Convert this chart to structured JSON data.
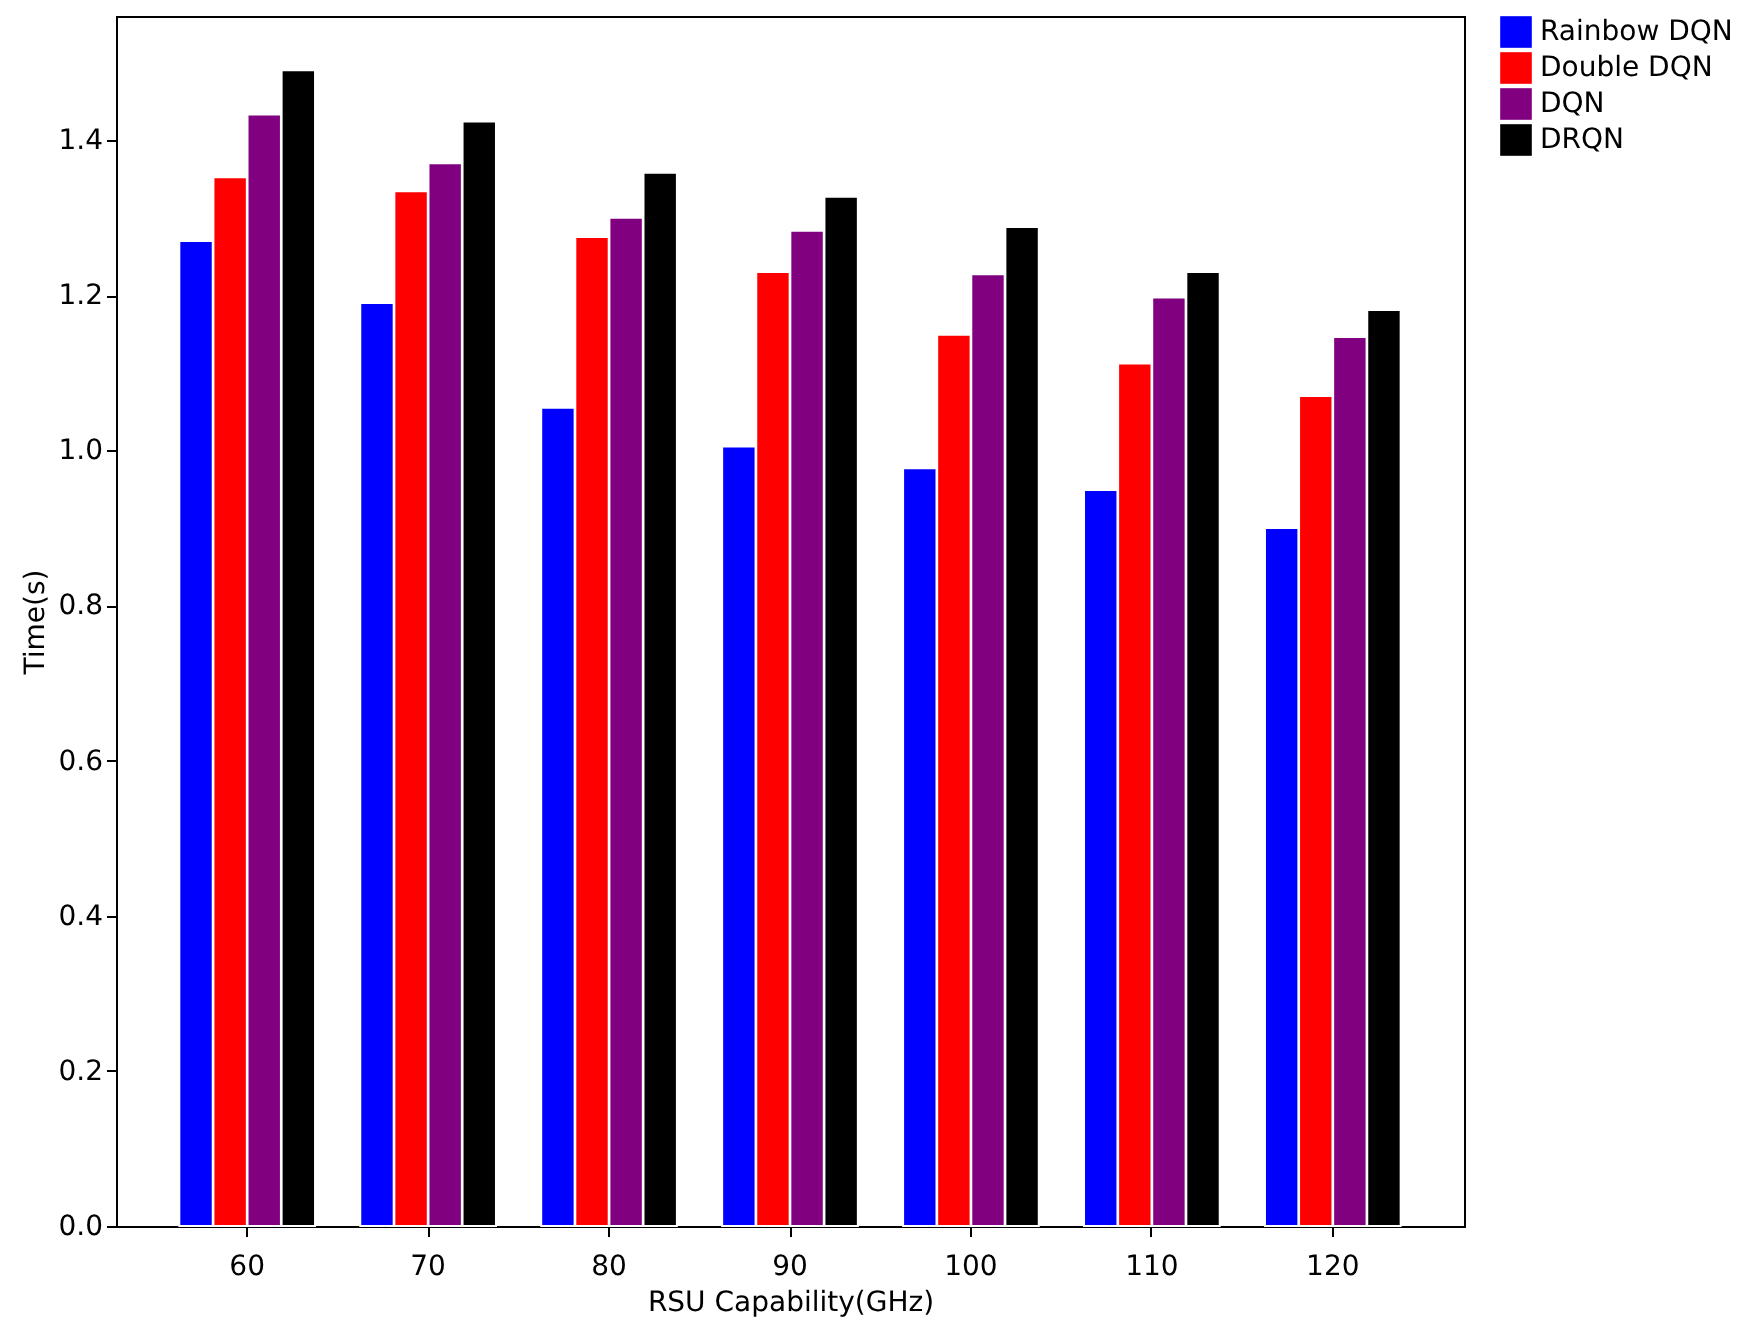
{
  "chart_data": {
    "type": "bar",
    "xlabel": "RSU Capability(GHz)",
    "ylabel": "Time(s)",
    "categories": [
      "60",
      "70",
      "80",
      "90",
      "100",
      "110",
      "120"
    ],
    "series": [
      {
        "name": "Rainbow DQN",
        "color": "#0000ff",
        "values": [
          1.27,
          1.19,
          1.055,
          1.005,
          0.977,
          0.949,
          0.9
        ]
      },
      {
        "name": "Double DQN",
        "color": "#ff0000",
        "values": [
          1.352,
          1.334,
          1.275,
          1.23,
          1.149,
          1.112,
          1.07
        ]
      },
      {
        "name": "DQN",
        "color": "#800080",
        "values": [
          1.433,
          1.37,
          1.3,
          1.283,
          1.227,
          1.197,
          1.146
        ]
      },
      {
        "name": "DRQN",
        "color": "#000000",
        "values": [
          1.49,
          1.424,
          1.358,
          1.327,
          1.288,
          1.23,
          1.181
        ]
      }
    ],
    "ylim": [
      0,
      1.56
    ],
    "yticks": [
      {
        "value": 0,
        "label": "0.0"
      },
      {
        "value": 0.2,
        "label": "0.2"
      },
      {
        "value": 0.4,
        "label": "0.4"
      },
      {
        "value": 0.6,
        "label": "0.6"
      },
      {
        "value": 0.8,
        "label": "0.8"
      },
      {
        "value": 1,
        "label": "1.0"
      },
      {
        "value": 1.2,
        "label": "1.2"
      },
      {
        "value": 1.4,
        "label": "1.4"
      }
    ],
    "grid": false,
    "legend": "top right"
  }
}
